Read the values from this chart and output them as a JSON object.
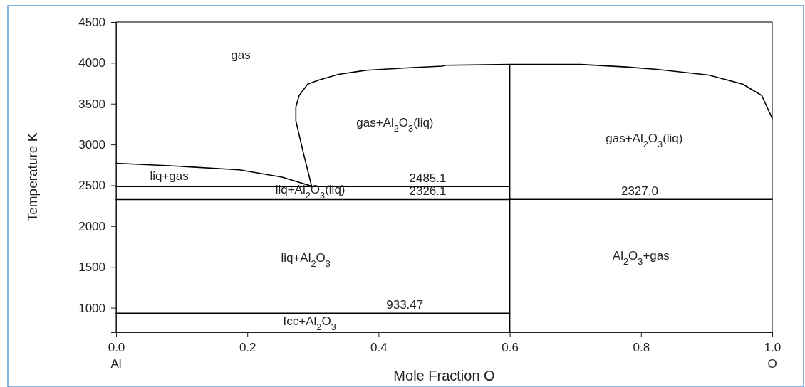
{
  "chart_data": {
    "type": "line",
    "xlabel": "Mole Fraction O",
    "ylabel": "Temperature K",
    "xlim": [
      0,
      1
    ],
    "ylim": [
      700,
      4500
    ],
    "xticks": [
      {
        "value": 0,
        "label": "0.0"
      },
      {
        "value": 0.2,
        "label": "0.2"
      },
      {
        "value": 0.4,
        "label": "0.4"
      },
      {
        "value": 0.6,
        "label": "0.6"
      },
      {
        "value": 0.8,
        "label": "0.8"
      },
      {
        "value": 1,
        "label": "1.0"
      }
    ],
    "yticks": [
      1000,
      1500,
      2000,
      2500,
      3000,
      3500,
      4000,
      4500
    ],
    "grid": false,
    "marker": "none",
    "line_style": "solid",
    "series": [
      {
        "color": "#000000",
        "x": [
          0,
          0.081,
          0.188,
          0.253,
          0.298
        ],
        "values": [
          2770,
          2740,
          2690,
          2600,
          2490
        ]
      },
      {
        "color": "#000000",
        "x": [
          0.298,
          0.285,
          0.274,
          0.274,
          0.279,
          0.292,
          0.309,
          0.339,
          0.382,
          0.447,
          0.497,
          0.502,
          0.6,
          0.708,
          0.777,
          0.824,
          0.903,
          0.955,
          0.984,
          1.0
        ],
        "values": [
          2490,
          2910,
          3290,
          3460,
          3600,
          3740,
          3790,
          3860,
          3910,
          3940,
          3960,
          3970,
          3980,
          3980,
          3950,
          3920,
          3850,
          3740,
          3600,
          3320
        ]
      },
      {
        "color": "#000000",
        "x": [
          0.6,
          0.6
        ],
        "values": [
          700,
          3980
        ]
      },
      {
        "color": "#000000",
        "x": [
          0,
          0.6
        ],
        "values": [
          2485.1,
          2485.1
        ]
      },
      {
        "color": "#000000",
        "x": [
          0,
          0.6,
          0.6,
          1
        ],
        "values": [
          2326.1,
          2326.1,
          2327.0,
          2327.0
        ]
      },
      {
        "color": "#000000",
        "x": [
          0,
          0.6
        ],
        "values": [
          933.47,
          933.47
        ]
      }
    ],
    "annotations": [
      "gas",
      "gas+Al$_{2}$O$_{3}$(liq)",
      "gas+Al$_{2}$O$_{3}$(liq)",
      "liq+gas",
      {
        "text": "2485.1",
        "x": 0.475,
        "y": 2485.1
      },
      "liq+Al$_{2}$O$_{3}$(liq)",
      {
        "text": "2326.1",
        "x": 0.475,
        "y": 2326.1
      },
      {
        "text": "2327.0",
        "x": 0.798,
        "y": 2327.0
      },
      "liq+Al$_{2}$O$_{3}$",
      "Al$_{2}$O$_{3}$+gas",
      {
        "text": "933.47",
        "x": 0.44,
        "y": 933.47
      },
      "fcc+Al$_{2}$O$_{3}$",
      "Al",
      "O"
    ]
  }
}
